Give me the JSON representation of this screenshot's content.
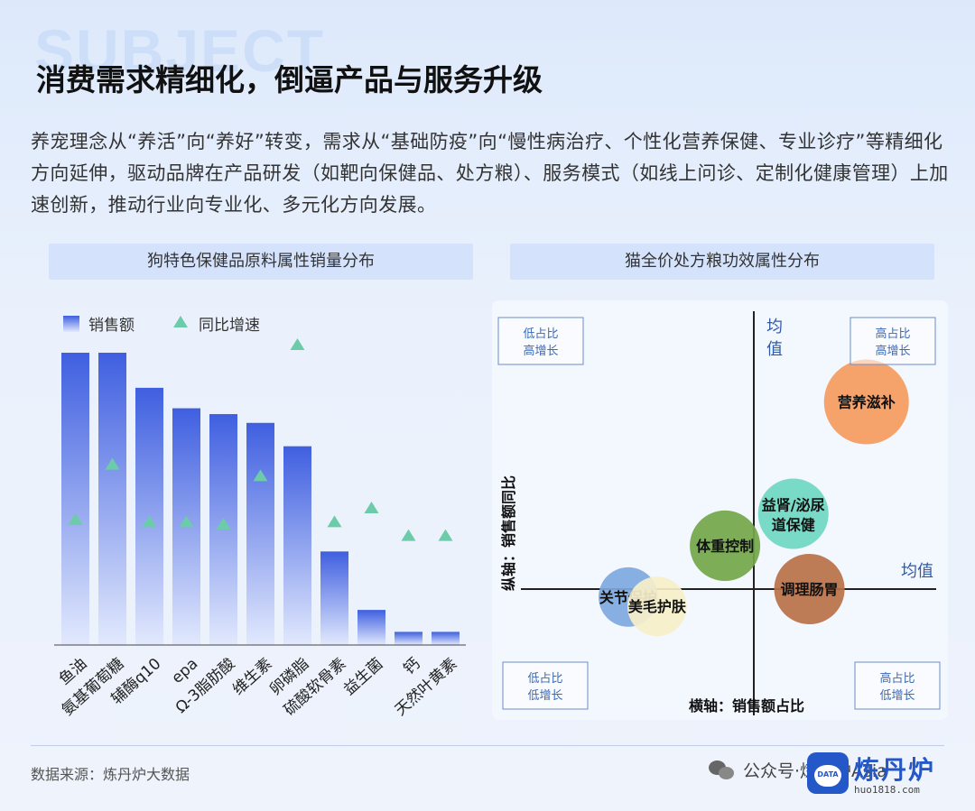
{
  "watermark": "SUBJECT",
  "title": "消费需求精细化，倒逼产品与服务升级",
  "paragraph": "养宠理念从“养活”向“养好”转变，需求从“基础防疫”向“慢性病治疗、个性化营养保健、专业诊疗”等精细化方向延伸，驱动品牌在产品研发（如靶向保健品、处方粮）、服务模式（如线上问诊、定制化健康管理）上加速创新，推动行业向专业化、多元化方向发展。",
  "left_panel_title": "狗特色保健品原料属性销量分布",
  "right_panel_title": "猫全价处方粮功效属性分布",
  "source": "数据来源：炼丹炉大数据",
  "footer_wechat": "公众号·炼丹炉Asia",
  "brand": {
    "name": "炼丹炉",
    "url": "huo1818.com",
    "logo_tag": "DATA"
  },
  "colors": {
    "bar_top": "#3f5fe0",
    "bar_bottom": "#e2e9fd",
    "triangle": "#6ccba8",
    "quad_box_border": "#6b8ec9",
    "axis": "#222222"
  },
  "chart_data": [
    {
      "type": "bar",
      "title": "狗特色保健品原料属性销量分布",
      "legend": {
        "placement": "top-left"
      },
      "categories": [
        "鱼油",
        "氨基葡萄糖",
        "辅酶q10",
        "epa",
        "Ω-3脂肪酸",
        "维生素",
        "卵磷脂",
        "硫酸软骨素",
        "益生菌",
        "钙",
        "天然叶黄素"
      ],
      "series": [
        {
          "name": "销售额",
          "kind": "bar",
          "values": [
            100,
            100,
            88,
            81,
            79,
            76,
            68,
            32,
            12,
            4.5,
            4.5
          ]
        },
        {
          "name": "同比增速",
          "kind": "marker-triangle",
          "values": [
            24,
            48,
            23,
            23,
            22,
            43,
            100,
            23,
            29,
            17,
            17
          ]
        }
      ],
      "ylim": [
        0,
        100
      ],
      "y_axis_shown": false
    },
    {
      "type": "scatter",
      "title": "猫全价处方粮功效属性分布",
      "xlabel": "横轴：销售额占比",
      "ylabel": "纵轴：销售额同比",
      "x_mean_label": "均值",
      "y_mean_label": "均值",
      "xlim": [
        -1,
        1
      ],
      "ylim": [
        -1,
        1
      ],
      "quadrants": [
        {
          "position": "top-left",
          "line1": "低占比",
          "line2": "高增长"
        },
        {
          "position": "top-right",
          "line1": "高占比",
          "line2": "高增长"
        },
        {
          "position": "bottom-left",
          "line1": "低占比",
          "line2": "低增长"
        },
        {
          "position": "bottom-right",
          "line1": "高占比",
          "line2": "低增长"
        }
      ],
      "points": [
        {
          "name": "营养滋补",
          "x": 0.77,
          "y": 0.82,
          "size": 1.0,
          "color": "#f59a5e"
        },
        {
          "name": "益肾/泌尿道保健",
          "name_line1": "益肾/泌尿",
          "name_line2": "道保健",
          "x": 0.27,
          "y": 0.33,
          "size": 0.83,
          "color": "#6fd8c2"
        },
        {
          "name": "体重控制",
          "x": -0.14,
          "y": 0.19,
          "size": 0.83,
          "color": "#74a64a"
        },
        {
          "name": "调理肠胃",
          "x": 0.38,
          "y": 0.0,
          "size": 0.83,
          "color": "#b87048"
        },
        {
          "name": "关节保护",
          "x": -0.61,
          "y": -0.11,
          "size": 0.7,
          "color": "#7ea8e0"
        },
        {
          "name": "美毛护肤",
          "x": -0.47,
          "y": -0.24,
          "size": 0.7,
          "color": "#f7efc9"
        }
      ]
    }
  ]
}
